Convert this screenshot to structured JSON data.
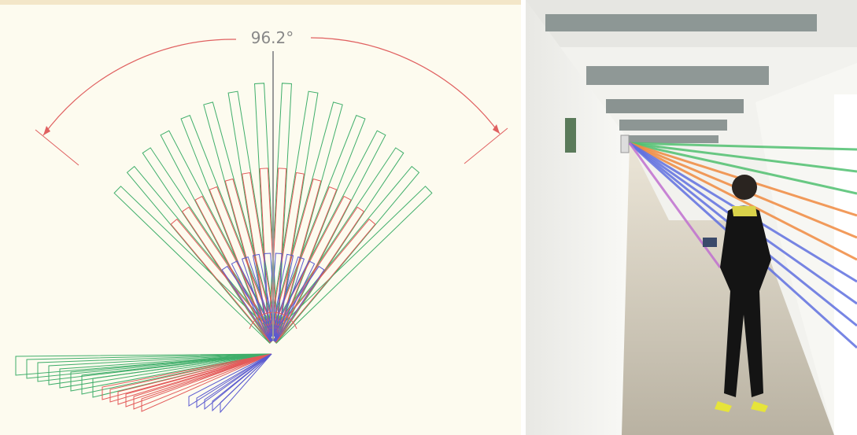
{
  "diagram": {
    "angle_label": "96.2°"
  }
}
